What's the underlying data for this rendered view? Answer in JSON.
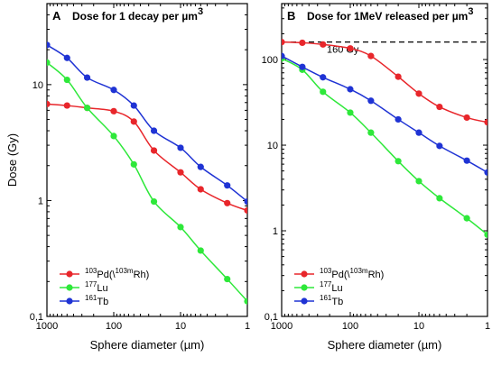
{
  "colors": {
    "pd": "#e8262b",
    "lu": "#2ee83a",
    "tb": "#1f33d4",
    "frame": "#000000"
  },
  "y_axis_label": "Dose (Gy)",
  "y_tick_labels": [
    "0,1",
    "1",
    "10",
    "100"
  ],
  "x_tick_labels": [
    "1000",
    "100",
    "10",
    "1"
  ],
  "chart_data": [
    {
      "type": "line",
      "panel_letter": "A",
      "title": "Dose for 1 decay per µm",
      "title_superscript": "3",
      "xlabel": "Sphere diameter (µm)",
      "ylabel": "Dose (Gy)",
      "x_scale": "log",
      "x_reversed": true,
      "xlim": [
        1000,
        1
      ],
      "y_scale": "log",
      "ylim": [
        0.1,
        50
      ],
      "legend_position": "bottom-left",
      "x": [
        1000,
        500,
        250,
        100,
        50,
        25,
        10,
        5,
        2,
        1
      ],
      "series": [
        {
          "name": "103Pd(103mRh)",
          "name_parts": [
            "103",
            "Pd(\\",
            "103m",
            "Rh)"
          ],
          "color_key": "pd",
          "values": [
            6.8,
            6.6,
            6.3,
            5.9,
            4.8,
            2.7,
            1.75,
            1.25,
            0.95,
            0.82
          ]
        },
        {
          "name": "177Lu",
          "name_parts": [
            "177",
            "Lu"
          ],
          "color_key": "lu",
          "values": [
            15.5,
            11,
            6.3,
            3.6,
            2.05,
            0.98,
            0.59,
            0.37,
            0.21,
            0.135
          ]
        },
        {
          "name": "161Tb",
          "name_parts": [
            "161",
            "Tb"
          ],
          "color_key": "tb",
          "values": [
            22,
            17,
            11.5,
            9,
            6.6,
            4,
            2.85,
            1.95,
            1.35,
            0.98
          ]
        }
      ]
    },
    {
      "type": "line",
      "panel_letter": "B",
      "title": "Dose for 1MeV released per µm",
      "title_superscript": "3",
      "xlabel": "Sphere diameter (µm)",
      "ylabel": "",
      "x_scale": "log",
      "x_reversed": true,
      "xlim": [
        1000,
        1
      ],
      "y_scale": "log",
      "ylim": [
        0.1,
        450
      ],
      "legend_position": "bottom-left",
      "reference_line": {
        "y": 160,
        "label": "160 Gy",
        "style": "dashed"
      },
      "x": [
        1000,
        500,
        250,
        100,
        50,
        20,
        10,
        5,
        2,
        1
      ],
      "series": [
        {
          "name": "103Pd(103mRh)",
          "name_parts": [
            "103",
            "Pd(\\",
            "103m",
            "Rh)"
          ],
          "color_key": "pd",
          "values": [
            160,
            157,
            150,
            135,
            110,
            63,
            40,
            28,
            21,
            18.5
          ]
        },
        {
          "name": "177Lu",
          "name_parts": [
            "177",
            "Lu"
          ],
          "color_key": "lu",
          "values": [
            103,
            76,
            42,
            24,
            14,
            6.5,
            3.8,
            2.4,
            1.4,
            0.9
          ]
        },
        {
          "name": "161Tb",
          "name_parts": [
            "161",
            "Tb"
          ],
          "color_key": "tb",
          "values": [
            110,
            82,
            62,
            45,
            33,
            20,
            14,
            9.8,
            6.6,
            4.8
          ]
        }
      ]
    }
  ]
}
